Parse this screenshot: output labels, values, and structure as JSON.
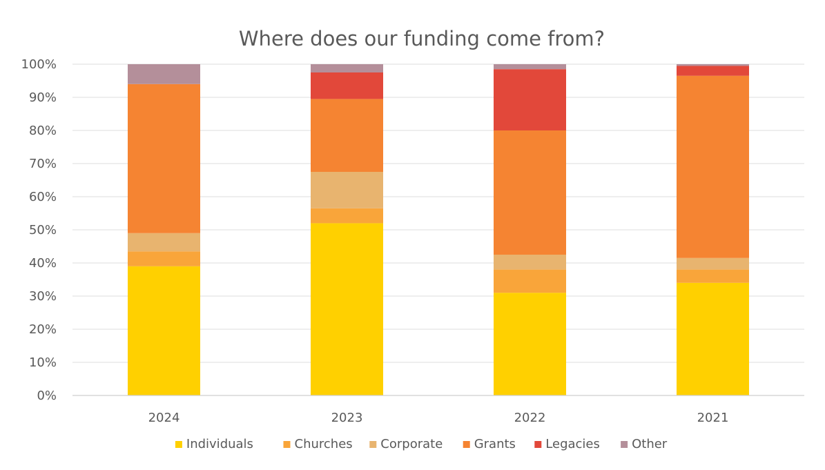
{
  "chart_data": {
    "type": "bar",
    "stacked": true,
    "title": "Where does our funding come from?",
    "xlabel": "",
    "ylabel": "",
    "ylim": [
      0,
      100
    ],
    "y_ticks": [
      "0%",
      "10%",
      "20%",
      "30%",
      "40%",
      "50%",
      "60%",
      "70%",
      "80%",
      "90%",
      "100%"
    ],
    "categories": [
      "2024",
      "2023",
      "2022",
      "2021"
    ],
    "grid": true,
    "legend_position": "bottom",
    "series": [
      {
        "name": "Individuals",
        "color": "#FFD000",
        "values": [
          39,
          52,
          31,
          34
        ]
      },
      {
        "name": "Churches",
        "color": "#F9A53A",
        "values": [
          4.5,
          4.5,
          7,
          4
        ]
      },
      {
        "name": "Corporate",
        "color": "#E8B46F",
        "values": [
          5.5,
          11,
          4.5,
          3.5
        ]
      },
      {
        "name": "Grants",
        "color": "#F58432",
        "values": [
          45,
          22,
          37.5,
          55
        ]
      },
      {
        "name": "Legacies",
        "color": "#E2483A",
        "values": [
          0,
          8,
          18.5,
          3
        ]
      },
      {
        "name": "Other",
        "color": "#B48F9A",
        "values": [
          6,
          2.5,
          1.5,
          0.5
        ]
      }
    ]
  }
}
